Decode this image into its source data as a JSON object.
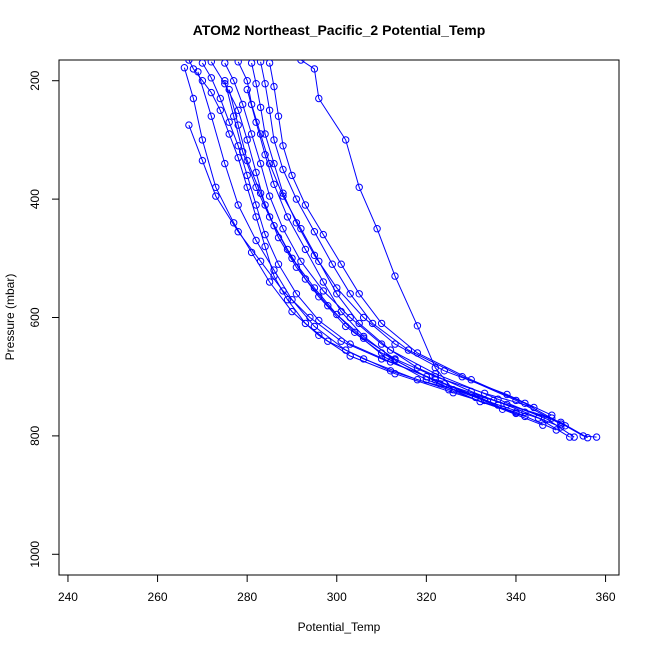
{
  "chart_data": {
    "type": "line",
    "title": "ATOM2 Northeast_Pacific_2 Potential_Temp",
    "xlabel": "Potential_Temp",
    "ylabel": "Pressure (mbar)",
    "xlim": [
      238,
      363
    ],
    "ylim": [
      1035,
      165
    ],
    "y_reversed": true,
    "xticks": [
      240,
      260,
      280,
      300,
      320,
      340,
      360
    ],
    "yticks": [
      200,
      400,
      600,
      800,
      1000
    ],
    "line_color": "#0000ff",
    "marker": "open-circle",
    "grid": false,
    "legend": "none",
    "series": [
      {
        "values": [
          [
            267,
            165
          ],
          [
            268,
            180
          ],
          [
            270,
            200
          ],
          [
            272,
            220
          ],
          [
            274,
            250
          ],
          [
            276,
            290
          ],
          [
            278,
            330
          ],
          [
            280,
            380
          ],
          [
            282,
            430
          ],
          [
            284,
            480
          ],
          [
            286,
            530
          ],
          [
            289,
            570
          ],
          [
            293,
            610
          ],
          [
            298,
            640
          ],
          [
            306,
            670
          ],
          [
            318,
            705
          ],
          [
            335,
            740
          ],
          [
            348,
            770
          ],
          [
            355,
            800
          ],
          [
            358,
            802
          ]
        ]
      },
      {
        "values": [
          [
            270,
            170
          ],
          [
            272,
            195
          ],
          [
            274,
            230
          ],
          [
            276,
            270
          ],
          [
            278,
            310
          ],
          [
            280,
            360
          ],
          [
            282,
            410
          ],
          [
            284,
            460
          ],
          [
            287,
            510
          ],
          [
            291,
            560
          ],
          [
            296,
            605
          ],
          [
            303,
            645
          ],
          [
            312,
            675
          ],
          [
            324,
            712
          ],
          [
            338,
            747
          ],
          [
            350,
            777
          ],
          [
            356,
            803
          ]
        ]
      },
      {
        "values": [
          [
            272,
            168
          ],
          [
            275,
            205
          ],
          [
            278,
            250
          ],
          [
            280,
            300
          ],
          [
            282,
            355
          ],
          [
            284,
            410
          ],
          [
            287,
            465
          ],
          [
            291,
            515
          ],
          [
            296,
            565
          ],
          [
            302,
            615
          ],
          [
            310,
            660
          ],
          [
            320,
            700
          ],
          [
            333,
            740
          ],
          [
            345,
            770
          ],
          [
            352,
            802
          ]
        ]
      },
      {
        "values": [
          [
            275,
            170
          ],
          [
            277,
            200
          ],
          [
            279,
            240
          ],
          [
            281,
            290
          ],
          [
            283,
            340
          ],
          [
            285,
            395
          ],
          [
            288,
            450
          ],
          [
            292,
            505
          ],
          [
            297,
            555
          ],
          [
            303,
            600
          ],
          [
            310,
            645
          ],
          [
            318,
            685
          ],
          [
            330,
            725
          ],
          [
            342,
            760
          ],
          [
            350,
            785
          ]
        ]
      },
      {
        "values": [
          [
            278,
            168
          ],
          [
            280,
            200
          ],
          [
            281,
            240
          ],
          [
            283,
            290
          ],
          [
            285,
            340
          ],
          [
            288,
            395
          ],
          [
            292,
            450
          ],
          [
            296,
            505
          ],
          [
            300,
            560
          ],
          [
            305,
            610
          ],
          [
            312,
            655
          ],
          [
            322,
            695
          ],
          [
            336,
            738
          ],
          [
            347,
            772
          ],
          [
            353,
            802
          ]
        ]
      },
      {
        "values": [
          [
            281,
            170
          ],
          [
            282,
            205
          ],
          [
            283,
            245
          ],
          [
            284,
            290
          ],
          [
            286,
            340
          ],
          [
            288,
            390
          ],
          [
            291,
            440
          ],
          [
            295,
            495
          ],
          [
            300,
            550
          ],
          [
            306,
            600
          ],
          [
            313,
            645
          ],
          [
            324,
            690
          ],
          [
            338,
            730
          ],
          [
            348,
            765
          ]
        ]
      },
      {
        "values": [
          [
            283,
            168
          ],
          [
            284,
            205
          ],
          [
            285,
            250
          ],
          [
            286,
            300
          ],
          [
            288,
            350
          ],
          [
            291,
            400
          ],
          [
            295,
            455
          ],
          [
            299,
            510
          ],
          [
            303,
            560
          ],
          [
            308,
            610
          ],
          [
            316,
            655
          ],
          [
            328,
            700
          ],
          [
            340,
            740
          ],
          [
            350,
            780
          ]
        ]
      },
      {
        "values": [
          [
            285,
            170
          ],
          [
            286,
            210
          ],
          [
            287,
            260
          ],
          [
            288,
            310
          ],
          [
            290,
            360
          ],
          [
            293,
            410
          ],
          [
            297,
            460
          ],
          [
            301,
            510
          ],
          [
            305,
            560
          ],
          [
            310,
            610
          ],
          [
            318,
            660
          ],
          [
            330,
            705
          ],
          [
            342,
            745
          ],
          [
            351,
            783
          ]
        ]
      },
      {
        "values": [
          [
            266,
            178
          ],
          [
            268,
            230
          ],
          [
            270,
            300
          ],
          [
            273,
            380
          ],
          [
            277,
            440
          ],
          [
            281,
            490
          ],
          [
            285,
            540
          ],
          [
            290,
            590
          ],
          [
            296,
            630
          ],
          [
            303,
            665
          ],
          [
            313,
            695
          ],
          [
            326,
            727
          ],
          [
            340,
            760
          ],
          [
            349,
            790
          ]
        ]
      },
      {
        "values": [
          [
            269,
            185
          ],
          [
            272,
            260
          ],
          [
            275,
            340
          ],
          [
            278,
            410
          ],
          [
            282,
            470
          ],
          [
            286,
            520
          ],
          [
            290,
            570
          ],
          [
            295,
            615
          ],
          [
            302,
            655
          ],
          [
            312,
            690
          ],
          [
            325,
            722
          ],
          [
            337,
            755
          ],
          [
            346,
            782
          ]
        ]
      },
      {
        "values": [
          [
            267,
            275
          ],
          [
            270,
            335
          ],
          [
            273,
            395
          ],
          [
            278,
            455
          ],
          [
            283,
            505
          ],
          [
            288,
            555
          ],
          [
            294,
            600
          ],
          [
            301,
            640
          ],
          [
            310,
            670
          ],
          [
            322,
            705
          ],
          [
            336,
            748
          ]
        ]
      },
      {
        "values": [
          [
            292,
            165
          ],
          [
            295,
            180
          ],
          [
            296,
            230
          ],
          [
            302,
            300
          ],
          [
            305,
            380
          ],
          [
            309,
            450
          ],
          [
            313,
            530
          ],
          [
            318,
            614
          ],
          [
            322,
            685
          ],
          [
            326,
            722
          ]
        ]
      },
      {
        "values": [
          [
            275,
            200
          ],
          [
            277,
            260
          ],
          [
            279,
            320
          ],
          [
            282,
            380
          ],
          [
            285,
            430
          ],
          [
            289,
            485
          ],
          [
            293,
            535
          ],
          [
            298,
            580
          ],
          [
            304,
            625
          ],
          [
            311,
            668
          ],
          [
            320,
            705
          ],
          [
            331,
            735
          ],
          [
            340,
            762
          ]
        ]
      },
      {
        "values": [
          [
            276,
            215
          ],
          [
            278,
            275
          ],
          [
            280,
            335
          ],
          [
            283,
            390
          ],
          [
            286,
            445
          ],
          [
            290,
            500
          ],
          [
            295,
            550
          ],
          [
            300,
            595
          ],
          [
            306,
            635
          ],
          [
            313,
            670
          ],
          [
            322,
            700
          ],
          [
            333,
            728
          ],
          [
            344,
            752
          ]
        ]
      },
      {
        "values": [
          [
            280,
            215
          ],
          [
            282,
            270
          ],
          [
            284,
            325
          ],
          [
            286,
            375
          ],
          [
            289,
            430
          ],
          [
            293,
            485
          ],
          [
            297,
            540
          ],
          [
            301,
            590
          ],
          [
            306,
            632
          ],
          [
            313,
            672
          ],
          [
            323,
            712
          ],
          [
            332,
            742
          ],
          [
            342,
            767
          ]
        ]
      }
    ]
  }
}
